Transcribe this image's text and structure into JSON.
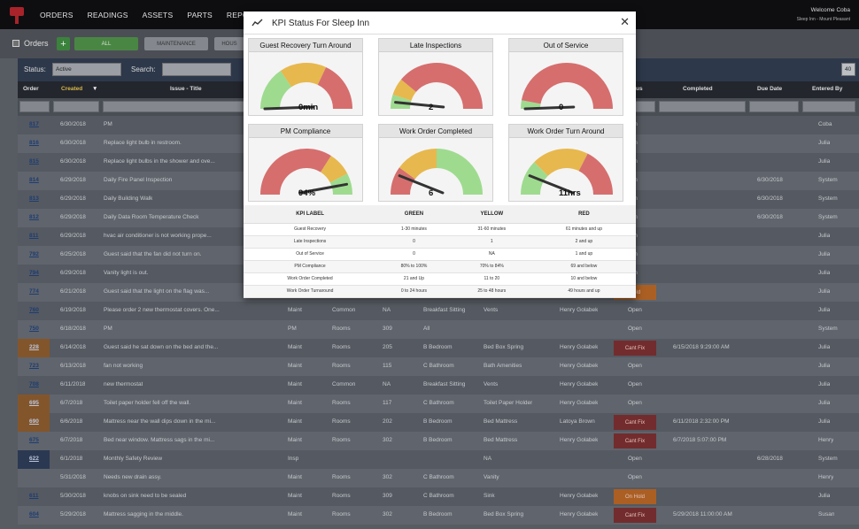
{
  "nav": {
    "items": [
      "ORDERS",
      "READINGS",
      "ASSETS",
      "PARTS",
      "REPORTS"
    ],
    "welcome": "Welcome Coba",
    "property": "Sleep Inn - Mount Pleasant"
  },
  "toolbar": {
    "title": "Orders",
    "add": "+",
    "all": "ALL",
    "maintenance": "MAINTENANCE",
    "house": "HOUS"
  },
  "filters": {
    "status_label": "Status:",
    "status_value": "Active",
    "search_label": "Search:",
    "page_size": "40"
  },
  "columns": {
    "order": "Order",
    "created": "Created",
    "issue": "Issue - Title",
    "status": "us",
    "completed": "Completed",
    "due": "Due Date",
    "entered": "Entered By"
  },
  "rows": [
    {
      "order": "817",
      "created": "6/30/2018",
      "title": "PM",
      "type": "",
      "cat": "",
      "room": "",
      "area": "",
      "item": "",
      "assigned": "",
      "status": "pen",
      "completed": "",
      "due": "",
      "entered": "Coba"
    },
    {
      "order": "816",
      "created": "6/30/2018",
      "title": "Replace light bulb in restroom.",
      "type": "",
      "cat": "",
      "room": "",
      "area": "",
      "item": "",
      "assigned": "",
      "status": "pen",
      "completed": "",
      "due": "",
      "entered": "Julia"
    },
    {
      "order": "815",
      "created": "6/30/2018",
      "title": "Replace light bulbs in the shower and ove...",
      "type": "",
      "cat": "",
      "room": "",
      "area": "",
      "item": "",
      "assigned": "",
      "status": "pen",
      "completed": "",
      "due": "",
      "entered": "Julia"
    },
    {
      "order": "814",
      "created": "6/29/2018",
      "title": "Daily Fire Panel Inspection",
      "type": "",
      "cat": "",
      "room": "",
      "area": "",
      "item": "",
      "assigned": "",
      "status": "pen",
      "completed": "",
      "due": "6/30/2018",
      "entered": "System"
    },
    {
      "order": "813",
      "created": "6/29/2018",
      "title": "Daily Building Walk",
      "type": "",
      "cat": "",
      "room": "",
      "area": "",
      "item": "",
      "assigned": "",
      "status": "pen",
      "completed": "",
      "due": "6/30/2018",
      "entered": "System"
    },
    {
      "order": "812",
      "created": "6/29/2018",
      "title": "Daily Data Room Temperature Check",
      "type": "",
      "cat": "",
      "room": "",
      "area": "",
      "item": "",
      "assigned": "",
      "status": "pen",
      "completed": "",
      "due": "6/30/2018",
      "entered": "System"
    },
    {
      "order": "811",
      "created": "6/29/2018",
      "title": "hvac air conditioner is not working prope...",
      "type": "",
      "cat": "",
      "room": "",
      "area": "",
      "item": "",
      "assigned": "",
      "status": "pen",
      "completed": "",
      "due": "",
      "entered": "Julia"
    },
    {
      "order": "792",
      "created": "6/25/2018",
      "title": "Guest said that the fan did not turn on.",
      "type": "",
      "cat": "",
      "room": "",
      "area": "",
      "item": "",
      "assigned": "",
      "status": "pen",
      "completed": "",
      "due": "",
      "entered": "Julia"
    },
    {
      "order": "794",
      "created": "6/29/2018",
      "title": "Vanity light is out.",
      "type": "",
      "cat": "",
      "room": "",
      "area": "",
      "item": "",
      "assigned": "",
      "status": "pen",
      "completed": "",
      "due": "",
      "entered": "Julia"
    },
    {
      "order": "774",
      "created": "6/21/2018",
      "title": "Guest said that the light on the flag was...",
      "type": "",
      "cat": "",
      "room": "",
      "area": "",
      "item": "",
      "assigned": "",
      "status": "Hold",
      "completed": "",
      "due": "",
      "entered": "Julia"
    },
    {
      "order": "760",
      "created": "6/19/2018",
      "title": "Please order 2 new thermostat covers. One...",
      "type": "Maint",
      "cat": "Common",
      "room": "NA",
      "area": "Breakfast Sitting",
      "item": "Vents",
      "assigned": "Henry Golabek",
      "status": "Open",
      "completed": "",
      "due": "",
      "entered": "Julia"
    },
    {
      "order": "750",
      "created": "6/18/2018",
      "title": "PM",
      "type": "PM",
      "cat": "Rooms",
      "room": "309",
      "area": "All",
      "item": "",
      "assigned": "",
      "status": "Open",
      "completed": "",
      "due": "",
      "entered": "System"
    },
    {
      "order": "228",
      "created": "6/14/2018",
      "title": "Guest said he sat down on the bed and the...",
      "type": "Maint",
      "cat": "Rooms",
      "room": "205",
      "area": "B Bedroom",
      "item": "Bed Box Spring",
      "assigned": "Henry Golabek",
      "status": "Cant Fix",
      "completed": "6/15/2018 9:29:00 AM",
      "due": "",
      "entered": "Julia"
    },
    {
      "order": "723",
      "created": "6/13/2018",
      "title": "fan not working",
      "type": "Maint",
      "cat": "Rooms",
      "room": "115",
      "area": "C Bathroom",
      "item": "Bath Amenities",
      "assigned": "Henry Golabek",
      "status": "Open",
      "completed": "",
      "due": "",
      "entered": "Julia"
    },
    {
      "order": "708",
      "created": "6/11/2018",
      "title": "new thermostat",
      "type": "Maint",
      "cat": "Common",
      "room": "NA",
      "area": "Breakfast Sitting",
      "item": "Vents",
      "assigned": "Henry Golabek",
      "status": "Open",
      "completed": "",
      "due": "",
      "entered": "Julia"
    },
    {
      "order": "695",
      "created": "6/7/2018",
      "title": "Toilet paper holder fell off the wall.",
      "type": "Maint",
      "cat": "Rooms",
      "room": "117",
      "area": "C Bathroom",
      "item": "Toilet Paper Holder",
      "assigned": "Henry Golabek",
      "status": "Open",
      "completed": "",
      "due": "",
      "entered": "Julia"
    },
    {
      "order": "690",
      "created": "6/6/2018",
      "title": "Mattress near the wall dips down in the mi...",
      "type": "Maint",
      "cat": "Rooms",
      "room": "202",
      "area": "B Bedroom",
      "item": "Bed Mattress",
      "assigned": "Latoya Brown",
      "status": "Cant Fix",
      "completed": "6/11/2018 2:32:00 PM",
      "due": "",
      "entered": "Julia"
    },
    {
      "order": "675",
      "created": "6/7/2018",
      "title": "Bed near window. Mattress sags in the mi...",
      "type": "Maint",
      "cat": "Rooms",
      "room": "302",
      "area": "B Bedroom",
      "item": "Bed Mattress",
      "assigned": "Henry Golabek",
      "status": "Cant Fix",
      "completed": "6/7/2018 5:07:00 PM",
      "due": "",
      "entered": "Henry"
    },
    {
      "order": "622",
      "created": "6/1/2018",
      "title": "Monthly Safety Review",
      "type": "Insp",
      "cat": "",
      "room": "",
      "area": "",
      "item": "NA",
      "assigned": "",
      "status": "Open",
      "completed": "",
      "due": "6/28/2018",
      "entered": "System"
    },
    {
      "order": "",
      "created": "5/31/2018",
      "title": "Needs new drain assy.",
      "type": "Maint",
      "cat": "Rooms",
      "room": "302",
      "area": "C Bathroom",
      "item": "Vanity",
      "assigned": "",
      "status": "Open",
      "completed": "",
      "due": "",
      "entered": "Henry"
    },
    {
      "order": "611",
      "created": "5/30/2018",
      "title": "knobs on sink need to be sealed",
      "type": "Maint",
      "cat": "Rooms",
      "room": "309",
      "area": "C Bathroom",
      "item": "Sink",
      "assigned": "Henry Golabek",
      "status": "On Hold",
      "completed": "",
      "due": "",
      "entered": "Julia"
    },
    {
      "order": "604",
      "created": "5/29/2018",
      "title": "Mattress sagging in the middle.",
      "type": "Maint",
      "cat": "Rooms",
      "room": "302",
      "area": "B Bedroom",
      "item": "Bed Box Spring",
      "assigned": "Henry Golabek",
      "status": "Cant Fix",
      "completed": "5/29/2018 11:00:00 AM",
      "due": "",
      "entered": "Susan"
    }
  ],
  "modal": {
    "title": "KPI Status For Sleep Inn",
    "colors": {
      "green": "#9edb8f",
      "yellow": "#e7b84d",
      "red": "#d66e6e"
    },
    "gauges": [
      {
        "title": "Guest Recovery Turn Around",
        "value": "0min",
        "level": 0.0,
        "bands": [
          0.31,
          0.33,
          0.36
        ]
      },
      {
        "title": "Late Inspections",
        "value": "2",
        "level": 0.05,
        "bands": [
          0.1,
          0.12,
          0.78
        ]
      },
      {
        "title": "Out of Service",
        "value": "0",
        "level": 0.0,
        "bands": [
          0.06,
          0.0,
          0.94
        ]
      },
      {
        "title": "PM Compliance",
        "value": "94%",
        "level": 0.92,
        "bands": [
          0.68,
          0.17,
          0.15
        ],
        "reverse": true
      },
      {
        "title": "Work Order Completed",
        "value": "6",
        "level": 0.15,
        "bands": [
          0.2,
          0.3,
          0.5
        ],
        "reverse": true
      },
      {
        "title": "Work Order Turn Around",
        "value": "11hrs",
        "level": 0.15,
        "bands": [
          0.25,
          0.4,
          0.35
        ]
      }
    ],
    "table_headers": [
      "KPI LABEL",
      "GREEN",
      "YELLOW",
      "RED"
    ],
    "table_rows": [
      [
        "Guest Recovery",
        "1-30 minutes",
        "31-60 minutes",
        "61 minutes and up"
      ],
      [
        "Late Inspections",
        "0",
        "1",
        "2 and up"
      ],
      [
        "Out of Service",
        "0",
        "NA",
        "1 and up"
      ],
      [
        "PM Compliance",
        "80% to 100%",
        "70% to 84%",
        "69 and below"
      ],
      [
        "Work Order Completed",
        "21 and Up",
        "11 to 20",
        "10 and below"
      ],
      [
        "Work Order Turnaround",
        "0 to 24 hours",
        "25 to 48 hours",
        "49 hours and up"
      ]
    ]
  }
}
